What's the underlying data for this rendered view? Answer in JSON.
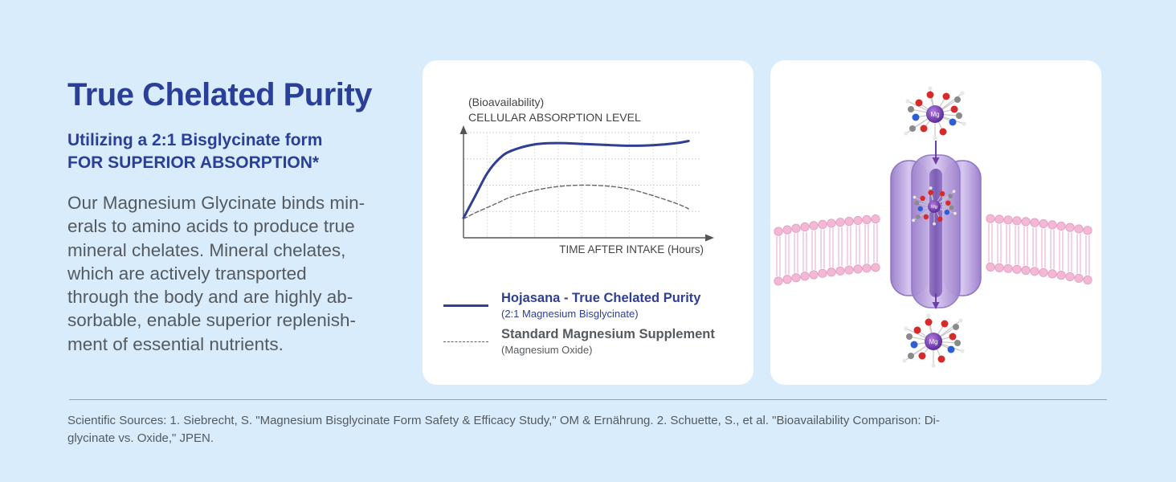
{
  "headline": {
    "title": "True Chelated Purity",
    "subtitle_line1": "Utilizing a 2:1 Bisglycinate form",
    "subtitle_line2": "FOR SUPERIOR ABSORPTION*"
  },
  "body": {
    "lines": [
      "Our Magnesium Glycinate binds min-",
      "erals to amino acids to produce true",
      "mineral chelates. Mineral chelates,",
      "which are actively transported",
      "through the body and are highly ab-",
      "sorbable, enable superior replenish-",
      "ment of essential nutrients."
    ]
  },
  "chart_data": {
    "type": "line",
    "ylabel_line1": "(Bioavailability)",
    "ylabel_line2": "CELLULAR ABSORPTION LEVEL",
    "xlabel": "TIME AFTER INTAKE (Hours)",
    "grid": true,
    "xlim": [
      0,
      10
    ],
    "ylim": [
      0,
      4
    ],
    "x": [
      0,
      0.5,
      1,
      1.5,
      2,
      3,
      4,
      5,
      6,
      7,
      8,
      9,
      9.5
    ],
    "series": [
      {
        "name": "Hojasana - True Chelated Purity",
        "sublabel": "(2:1 Magnesium Bisglycinate)",
        "style": "solid",
        "color": "#2e3f94",
        "values": [
          0.75,
          1.6,
          2.45,
          3.0,
          3.3,
          3.55,
          3.6,
          3.57,
          3.53,
          3.5,
          3.52,
          3.6,
          3.68
        ]
      },
      {
        "name": "Standard Magnesium Supplement",
        "sublabel": "(Magnesium Oxide)",
        "style": "dashed",
        "color": "#666666",
        "values": [
          0.72,
          0.95,
          1.15,
          1.35,
          1.55,
          1.8,
          1.95,
          2.0,
          1.97,
          1.85,
          1.6,
          1.3,
          1.1
        ]
      }
    ]
  },
  "illustration": {
    "mg_label": "Mg"
  },
  "footer": {
    "sources_line1": "Scientific Sources: 1. Siebrecht, S. \"Magnesium Bisglycinate Form Safety & Efficacy Study,\" OM & Ernährung. 2. Schuette, S., et al. \"Bioavailability Comparison: Di-",
    "sources_line2": "glycinate vs. Oxide,\" JPEN."
  },
  "colors": {
    "background": "#d8ecfb",
    "brand_blue": "#2a3f97",
    "text_gray": "#555a5f",
    "membrane_pink": "#f2b8d4",
    "channel_purple": "#b69ad8"
  }
}
